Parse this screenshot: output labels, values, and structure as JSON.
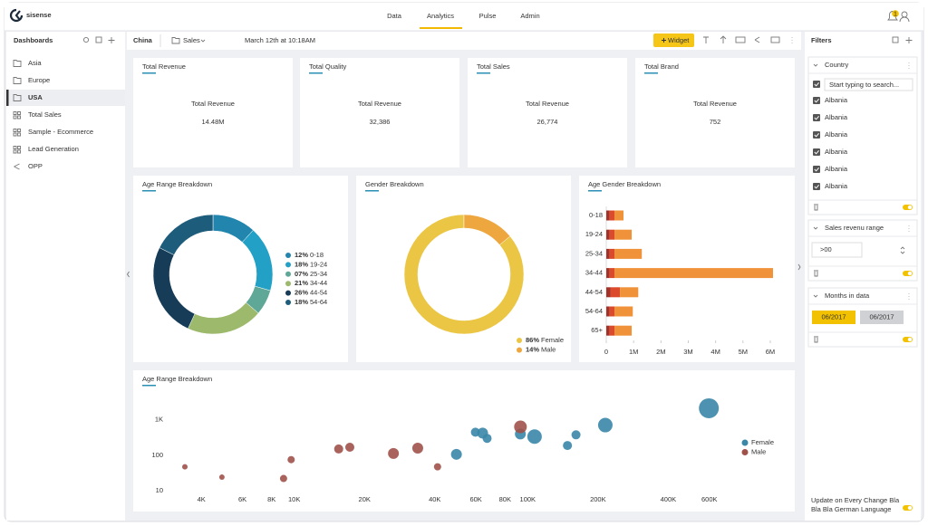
{
  "nav": {
    "logo": "sisense",
    "tabs": [
      {
        "label": "Data"
      },
      {
        "label": "Analytics",
        "active": true
      },
      {
        "label": "Pulse"
      },
      {
        "label": "Admin"
      }
    ],
    "notification_count": "1"
  },
  "sidebar": {
    "title": "Dashboards",
    "items": [
      {
        "label": "Asia",
        "icon": "folder"
      },
      {
        "label": "Europe",
        "icon": "folder"
      },
      {
        "label": "USA",
        "icon": "folder",
        "selected": true
      },
      {
        "label": "Total Sales",
        "icon": "dashboard"
      },
      {
        "label": "Sample - Ecommerce",
        "icon": "dashboard"
      },
      {
        "label": "Lead Generation",
        "icon": "dashboard"
      },
      {
        "label": "OPP",
        "icon": "share"
      }
    ]
  },
  "toolbar": {
    "dashboard": "China",
    "folder": "Sales",
    "timestamp": "March 12th at 10:18AM",
    "button": "Widget"
  },
  "kpis": [
    {
      "title": "Total Revenue",
      "label": "Total Revenue",
      "value": "14.48M"
    },
    {
      "title": "Total Quality",
      "label": "Total Revenue",
      "value": "32,386"
    },
    {
      "title": "Total Sales",
      "label": "Total Revenue",
      "value": "26,774"
    },
    {
      "title": "Total Brand",
      "label": "Total Revenue",
      "value": "752"
    }
  ],
  "filters": {
    "title": "Filters",
    "country": {
      "title": "Country",
      "search_placeholder": "Start typing to search...",
      "options": [
        "Albania",
        "Albania",
        "Albania",
        "Albania",
        "Albania",
        "Albania"
      ]
    },
    "sales_range": {
      "title": "Sales revenu range",
      "input": ">00"
    },
    "months": {
      "title": "Months in data",
      "from": "06/2017",
      "to": "06/2017"
    },
    "footer": [
      "Update on Every Change Bla",
      "Bla Bla German Language"
    ]
  },
  "chart_data": [
    {
      "type": "donut",
      "title": "Age Range Breakdown",
      "direction": "clockwise",
      "categories": [
        "0-18",
        "19-24",
        "25-34",
        "34-44",
        "44-54",
        "54-64"
      ],
      "values": [
        12,
        18,
        7,
        21,
        26,
        18
      ],
      "value_labels": [
        "12%",
        "18%",
        "07%",
        "21%",
        "26%",
        "18%"
      ],
      "colors": [
        "#2185ad",
        "#22a0c6",
        "#5fa897",
        "#9cb96c",
        "#173c57",
        "#1e5c7c"
      ]
    },
    {
      "type": "donut",
      "title": "Gender Breakdown",
      "direction": "counterclockwise",
      "categories": [
        "Female",
        "Male"
      ],
      "values": [
        86,
        14
      ],
      "value_labels": [
        "86%",
        "14%"
      ],
      "colors": [
        "#ebc645",
        "#eea73e"
      ]
    },
    {
      "type": "bar",
      "title": "Age Gender Breakdown",
      "orientation": "horizontal",
      "stacked": true,
      "categories": [
        "0-18",
        "19-24",
        "25-34",
        "34-44",
        "44-54",
        "54-64",
        "65+"
      ],
      "series": [
        {
          "color": "#a3322b",
          "values": [
            120000,
            120000,
            120000,
            120000,
            150000,
            120000,
            120000
          ]
        },
        {
          "color": "#dc4a2c",
          "values": [
            180000,
            180000,
            180000,
            180000,
            350000,
            180000,
            180000
          ]
        },
        {
          "color": "#f0923a",
          "values": [
            330000,
            630000,
            1000000,
            5800000,
            670000,
            670000,
            630000
          ]
        }
      ],
      "xlim": [
        0,
        6200000
      ],
      "xticks": [
        0,
        {
          "value": 1000000,
          "label": "1M"
        },
        {
          "value": 2000000,
          "label": "2M"
        },
        {
          "value": 3000000,
          "label": "3M"
        },
        {
          "value": 4000000,
          "label": "4M"
        },
        {
          "value": 5000000,
          "label": "5M"
        },
        {
          "value": 6000000,
          "label": "6M"
        }
      ]
    },
    {
      "type": "scatter",
      "title": "Age Range Breakdown",
      "xscale": "log",
      "yscale": "log",
      "xlim": [
        3000,
        700000
      ],
      "ylim": [
        7,
        3000
      ],
      "xticks": [
        {
          "value": 4000,
          "label": "4K"
        },
        {
          "value": 6000,
          "label": "6K"
        },
        {
          "value": 8000,
          "label": "8K"
        },
        {
          "value": 10000,
          "label": "10K"
        },
        {
          "value": 20000,
          "label": "20K"
        },
        {
          "value": 40000,
          "label": "40K"
        },
        {
          "value": 60000,
          "label": "60K"
        },
        {
          "value": 80000,
          "label": "80K"
        },
        {
          "value": 100000,
          "label": "100K"
        },
        {
          "value": 200000,
          "label": "200K"
        },
        {
          "value": 400000,
          "label": "400K"
        },
        {
          "value": 600000,
          "label": "600K"
        }
      ],
      "yticks": [
        10,
        100,
        {
          "value": 1000,
          "label": "1K"
        }
      ],
      "series": [
        {
          "name": "Female",
          "color": "#3a87a8",
          "x": [
            49500,
            59700,
            64100,
            67000,
            93000,
            107000,
            148000,
            161000,
            215000,
            597000
          ],
          "values": [
            106,
            447,
            422,
            299,
            398,
            335,
            188,
            376,
            708,
            2113
          ],
          "sizes": [
            36,
            25,
            36,
            25,
            36,
            64,
            25,
            25,
            64,
            121
          ]
        },
        {
          "name": "Male",
          "color": "#a0524a",
          "x": [
            3400,
            4900,
            9000,
            9700,
            15500,
            17300,
            26600,
            33800,
            41100,
            93100
          ],
          "values": [
            47,
            24,
            22,
            75,
            150,
            168,
            112,
            158,
            47,
            631
          ],
          "sizes": [
            9,
            9,
            16,
            16,
            25,
            25,
            36,
            36,
            16,
            49
          ]
        }
      ]
    }
  ]
}
